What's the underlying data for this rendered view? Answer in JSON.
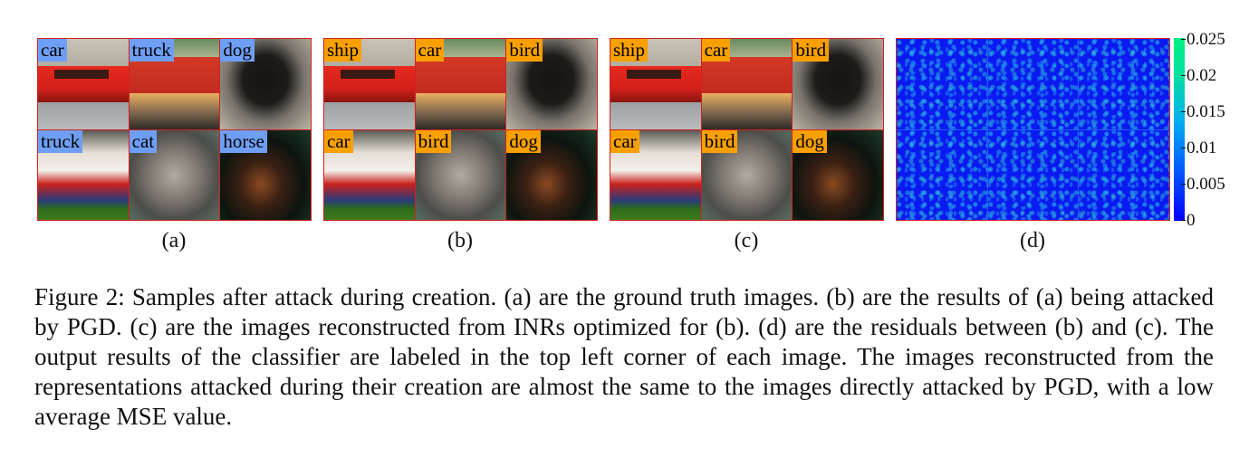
{
  "panels": [
    {
      "letter": "(a)",
      "labels": [
        "car",
        "truck",
        "dog",
        "truck",
        "cat",
        "horse"
      ]
    },
    {
      "letter": "(b)",
      "labels": [
        "ship",
        "car",
        "bird",
        "car",
        "bird",
        "dog"
      ]
    },
    {
      "letter": "(c)",
      "labels": [
        "ship",
        "car",
        "bird",
        "car",
        "bird",
        "dog"
      ]
    },
    {
      "letter": "(d)"
    }
  ],
  "colorbar": {
    "ticks": [
      "0.025",
      "0.02",
      "0.015",
      "0.01",
      "0.005",
      "0"
    ]
  },
  "caption": "Figure 2: Samples after attack during creation. (a) are the ground truth images. (b) are the results of (a) being attacked by PGD. (c) are the images reconstructed from INRs optimized for (b). (d) are the residuals between (b) and (c). The output results of the classifier are labeled in the top left corner of each image. The images reconstructed from the representations attacked during their creation are almost the same to the images directly attacked by PGD, with a low average MSE value."
}
